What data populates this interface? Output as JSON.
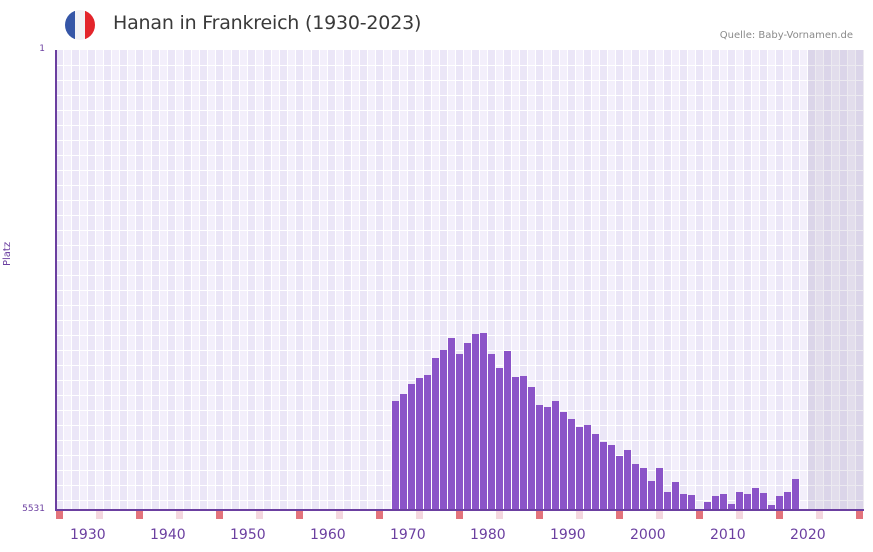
{
  "header": {
    "title": "Hanan in Frankreich (1930-2023)",
    "source": "Quelle: Baby-Vornamen.de",
    "flag": {
      "country": "France",
      "colors": [
        "#3556a7",
        "#f2f2f6",
        "#e3252b"
      ]
    }
  },
  "colors": {
    "bar": "#8b54c8",
    "axis": "#6b3fa0",
    "label": "#6b3fa0",
    "grid_a": "#f3effb",
    "grid_b": "#ebe6f7",
    "future_shade": "#dcd8e6",
    "decade_marker": "#e3737c",
    "half_decade_marker": "#f4d7df"
  },
  "chart_data": {
    "type": "bar",
    "title": "Hanan in Frankreich (1930-2023)",
    "subtitle": "Quelle: Baby-Vornamen.de",
    "xlabel": "",
    "ylabel": "Platz",
    "y_inverted": true,
    "ylim": [
      1,
      5531
    ],
    "y_tick_labels": [
      "1",
      "5531"
    ],
    "x_range": [
      1928,
      2028
    ],
    "x_tick_labels": [
      "1930",
      "1940",
      "1950",
      "1960",
      "1970",
      "1980",
      "1990",
      "2000",
      "2010",
      "2020"
    ],
    "future_shaded_from": 2022,
    "grid": true,
    "legend": null,
    "categories": [
      1970,
      1971,
      1972,
      1973,
      1974,
      1975,
      1976,
      1977,
      1978,
      1979,
      1980,
      1981,
      1982,
      1983,
      1984,
      1985,
      1986,
      1987,
      1988,
      1989,
      1990,
      1991,
      1992,
      1993,
      1994,
      1995,
      1996,
      1997,
      1998,
      1999,
      2000,
      2001,
      2002,
      2003,
      2004,
      2005,
      2006,
      2007,
      2009,
      2010,
      2011,
      2012,
      2013,
      2014,
      2015,
      2016,
      2017,
      2018,
      2019,
      2020
    ],
    "values": [
      4220,
      4136,
      4016,
      3944,
      3908,
      3704,
      3608,
      3463,
      3656,
      3523,
      3415,
      3403,
      3656,
      3824,
      3620,
      3932,
      3920,
      4052,
      4268,
      4292,
      4220,
      4353,
      4437,
      4533,
      4509,
      4617,
      4713,
      4749,
      4881,
      4809,
      4978,
      5026,
      5182,
      5026,
      5314,
      5194,
      5338,
      5350,
      5434,
      5362,
      5338,
      5459,
      5314,
      5338,
      5266,
      5326,
      5471,
      5362,
      5314,
      5158
    ],
    "series_name": "Platz (rank)"
  }
}
